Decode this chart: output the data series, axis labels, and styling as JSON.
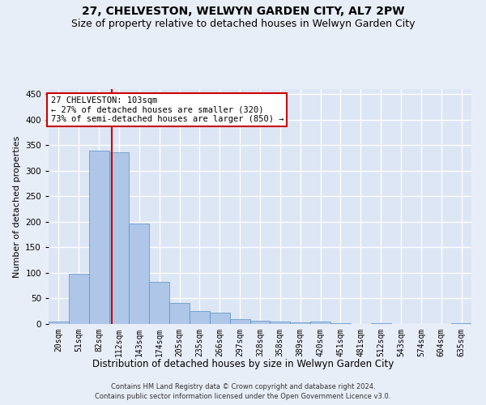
{
  "title": "27, CHELVESTON, WELWYN GARDEN CITY, AL7 2PW",
  "subtitle": "Size of property relative to detached houses in Welwyn Garden City",
  "xlabel": "Distribution of detached houses by size in Welwyn Garden City",
  "ylabel": "Number of detached properties",
  "categories": [
    "20sqm",
    "51sqm",
    "82sqm",
    "112sqm",
    "143sqm",
    "174sqm",
    "205sqm",
    "235sqm",
    "266sqm",
    "297sqm",
    "328sqm",
    "358sqm",
    "389sqm",
    "420sqm",
    "451sqm",
    "481sqm",
    "512sqm",
    "543sqm",
    "574sqm",
    "604sqm",
    "635sqm"
  ],
  "values": [
    5,
    98,
    340,
    337,
    197,
    83,
    42,
    25,
    22,
    9,
    6,
    4,
    3,
    4,
    1,
    0,
    1,
    0,
    0,
    0,
    2
  ],
  "bar_color": "#aec6e8",
  "bar_edgecolor": "#5a8fc2",
  "vline_x": 2.65,
  "vline_color": "#cc0000",
  "annotation_line1": "27 CHELVESTON: 103sqm",
  "annotation_line2": "← 27% of detached houses are smaller (320)",
  "annotation_line3": "73% of semi-detached houses are larger (850) →",
  "annotation_box_color": "#cc0000",
  "ylim": [
    0,
    460
  ],
  "yticks": [
    0,
    50,
    100,
    150,
    200,
    250,
    300,
    350,
    400,
    450
  ],
  "footer_line1": "Contains HM Land Registry data © Crown copyright and database right 2024.",
  "footer_line2": "Contains public sector information licensed under the Open Government Licence v3.0.",
  "bg_color": "#e8eef8",
  "plot_bg_color": "#dce6f5",
  "grid_color": "#ffffff",
  "title_fontsize": 10,
  "subtitle_fontsize": 9,
  "tick_fontsize": 7,
  "ylabel_fontsize": 8,
  "xlabel_fontsize": 8.5,
  "footer_fontsize": 6
}
